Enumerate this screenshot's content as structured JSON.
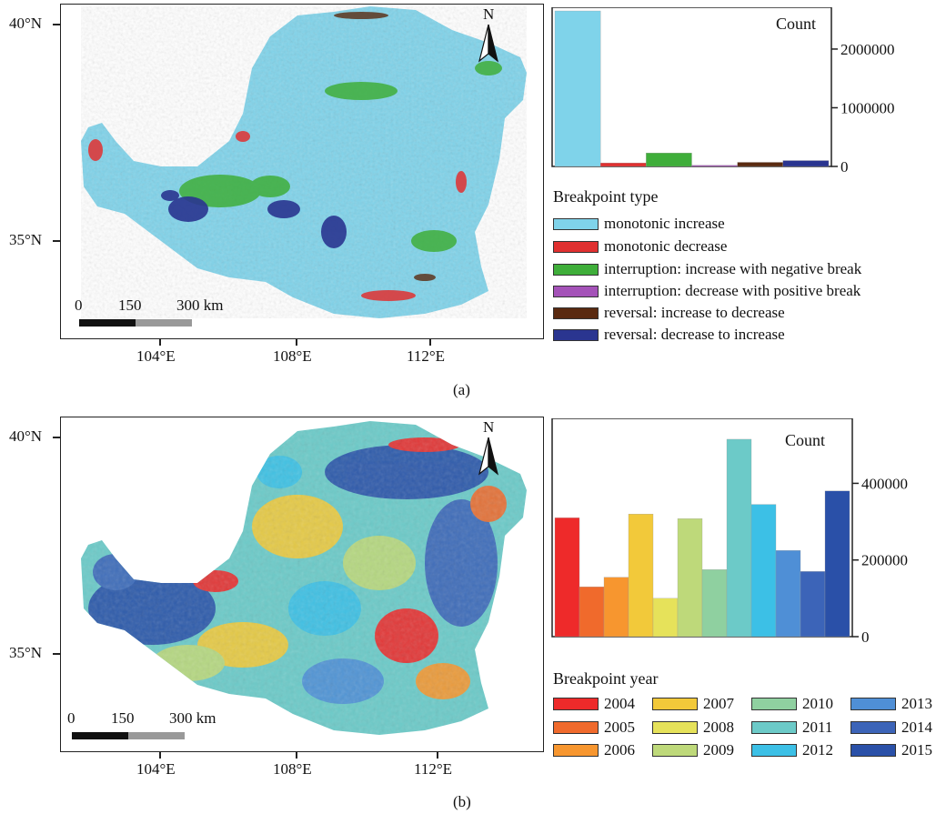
{
  "panel_a": {
    "caption": "(a)",
    "lat_labels": [
      "40°N",
      "35°N"
    ],
    "lon_labels": [
      "104°E",
      "108°E",
      "112°E"
    ],
    "north_label": "N",
    "scale": {
      "labels": [
        "0",
        "150",
        "300 km"
      ]
    },
    "legend_title": "Breakpoint type",
    "legend_items": [
      {
        "label": "monotonic increase",
        "color": "#7fd3ea"
      },
      {
        "label": "monotonic decrease",
        "color": "#e03030"
      },
      {
        "label": "interruption: increase with negative break",
        "color": "#3fae3a"
      },
      {
        "label": "interruption: decrease with positive break",
        "color": "#a452b8"
      },
      {
        "label": "reversal: increase to decrease",
        "color": "#5a2a10"
      },
      {
        "label": "reversal: decrease to increase",
        "color": "#2a3590"
      }
    ],
    "histogram_title": "Count"
  },
  "panel_b": {
    "caption": "(b)",
    "lat_labels": [
      "40°N",
      "35°N"
    ],
    "lon_labels": [
      "104°E",
      "108°E",
      "112°E"
    ],
    "north_label": "N",
    "scale": {
      "labels": [
        "0",
        "150",
        "300 km"
      ]
    },
    "legend_title": "Breakpoint year",
    "legend_items": [
      {
        "label": "2004",
        "color": "#ee2a2a"
      },
      {
        "label": "2005",
        "color": "#f06a2c"
      },
      {
        "label": "2006",
        "color": "#f7962f"
      },
      {
        "label": "2007",
        "color": "#f2c93a"
      },
      {
        "label": "2008",
        "color": "#e6e25a"
      },
      {
        "label": "2009",
        "color": "#bed97a"
      },
      {
        "label": "2010",
        "color": "#8fd0a0"
      },
      {
        "label": "2011",
        "color": "#6ccac8"
      },
      {
        "label": "2012",
        "color": "#3cc0e6"
      },
      {
        "label": "2013",
        "color": "#4f8fd6"
      },
      {
        "label": "2014",
        "color": "#3c64b8"
      },
      {
        "label": "2015",
        "color": "#2a50a8"
      }
    ],
    "histogram_title": "Count"
  },
  "chart_data": [
    {
      "type": "bar",
      "title": "Count",
      "categories": [
        "monotonic increase",
        "monotonic decrease",
        "interruption: increase with negative break",
        "interruption: decrease with positive break",
        "reversal: increase to decrease",
        "reversal: decrease to increase"
      ],
      "values": [
        2650000,
        60000,
        230000,
        20000,
        70000,
        100000
      ],
      "colors": [
        "#7fd3ea",
        "#e03030",
        "#3fae3a",
        "#a452b8",
        "#5a2a10",
        "#2a3590"
      ],
      "ylim": [
        0,
        2650000
      ],
      "yticks": [
        0,
        1000000,
        2000000
      ],
      "ytick_labels": [
        "0",
        "1000000",
        "2000000"
      ],
      "axis_side": "right"
    },
    {
      "type": "bar",
      "title": "Count",
      "categories": [
        "2004",
        "2005",
        "2006",
        "2007",
        "2008",
        "2009",
        "2010",
        "2011",
        "2012",
        "2013",
        "2014",
        "2015"
      ],
      "values": [
        310000,
        130000,
        155000,
        320000,
        100000,
        308000,
        175000,
        515000,
        345000,
        225000,
        170000,
        380000
      ],
      "colors": [
        "#ee2a2a",
        "#f06a2c",
        "#f7962f",
        "#f2c93a",
        "#e6e25a",
        "#bed97a",
        "#8fd0a0",
        "#6ccac8",
        "#3cc0e6",
        "#4f8fd6",
        "#3c64b8",
        "#2a50a8"
      ],
      "ylim": [
        0,
        560000
      ],
      "yticks": [
        0,
        200000,
        400000
      ],
      "ytick_labels": [
        "0",
        "200000",
        "400000"
      ],
      "axis_side": "right"
    }
  ]
}
